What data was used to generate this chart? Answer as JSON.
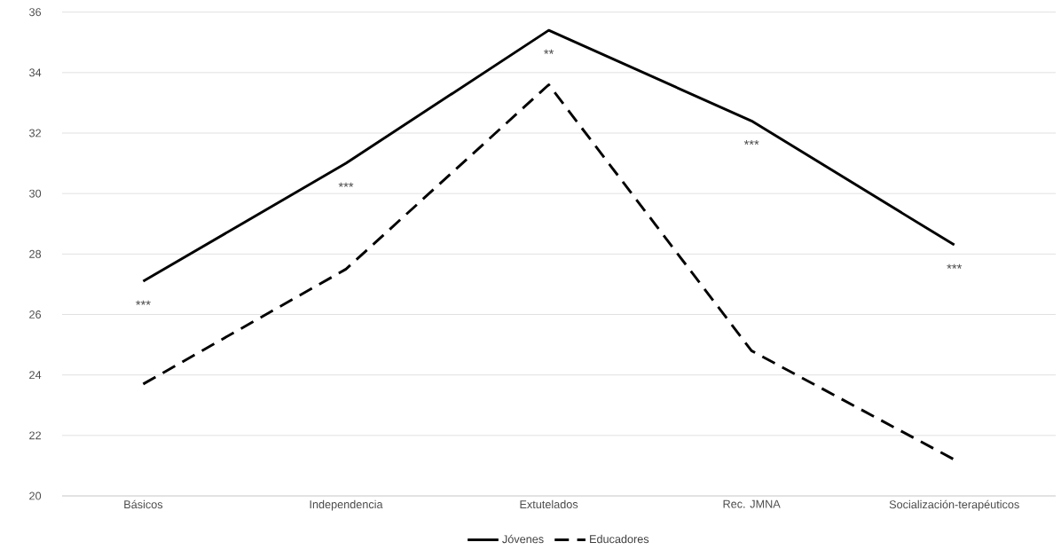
{
  "chart_data": {
    "type": "line",
    "categories": [
      "Básicos",
      "Independencia",
      "Extutelados",
      "Rec. JMNA",
      "Socialización-terapéuticos"
    ],
    "series": [
      {
        "name": "Jóvenes",
        "color": "#000000",
        "line_style": "solid",
        "values": [
          27.1,
          31.0,
          35.4,
          32.4,
          28.3
        ]
      },
      {
        "name": "Educadores",
        "color": "#000000",
        "line_style": "dashed",
        "values": [
          23.7,
          27.5,
          33.6,
          24.8,
          21.2
        ]
      }
    ],
    "ylim": [
      20,
      36
    ],
    "yticks": [
      20,
      22,
      24,
      26,
      28,
      30,
      32,
      34,
      36
    ],
    "grid": "y",
    "legend": "bottom",
    "annotations": [
      "***",
      "***",
      "**",
      "***",
      "***"
    ]
  }
}
